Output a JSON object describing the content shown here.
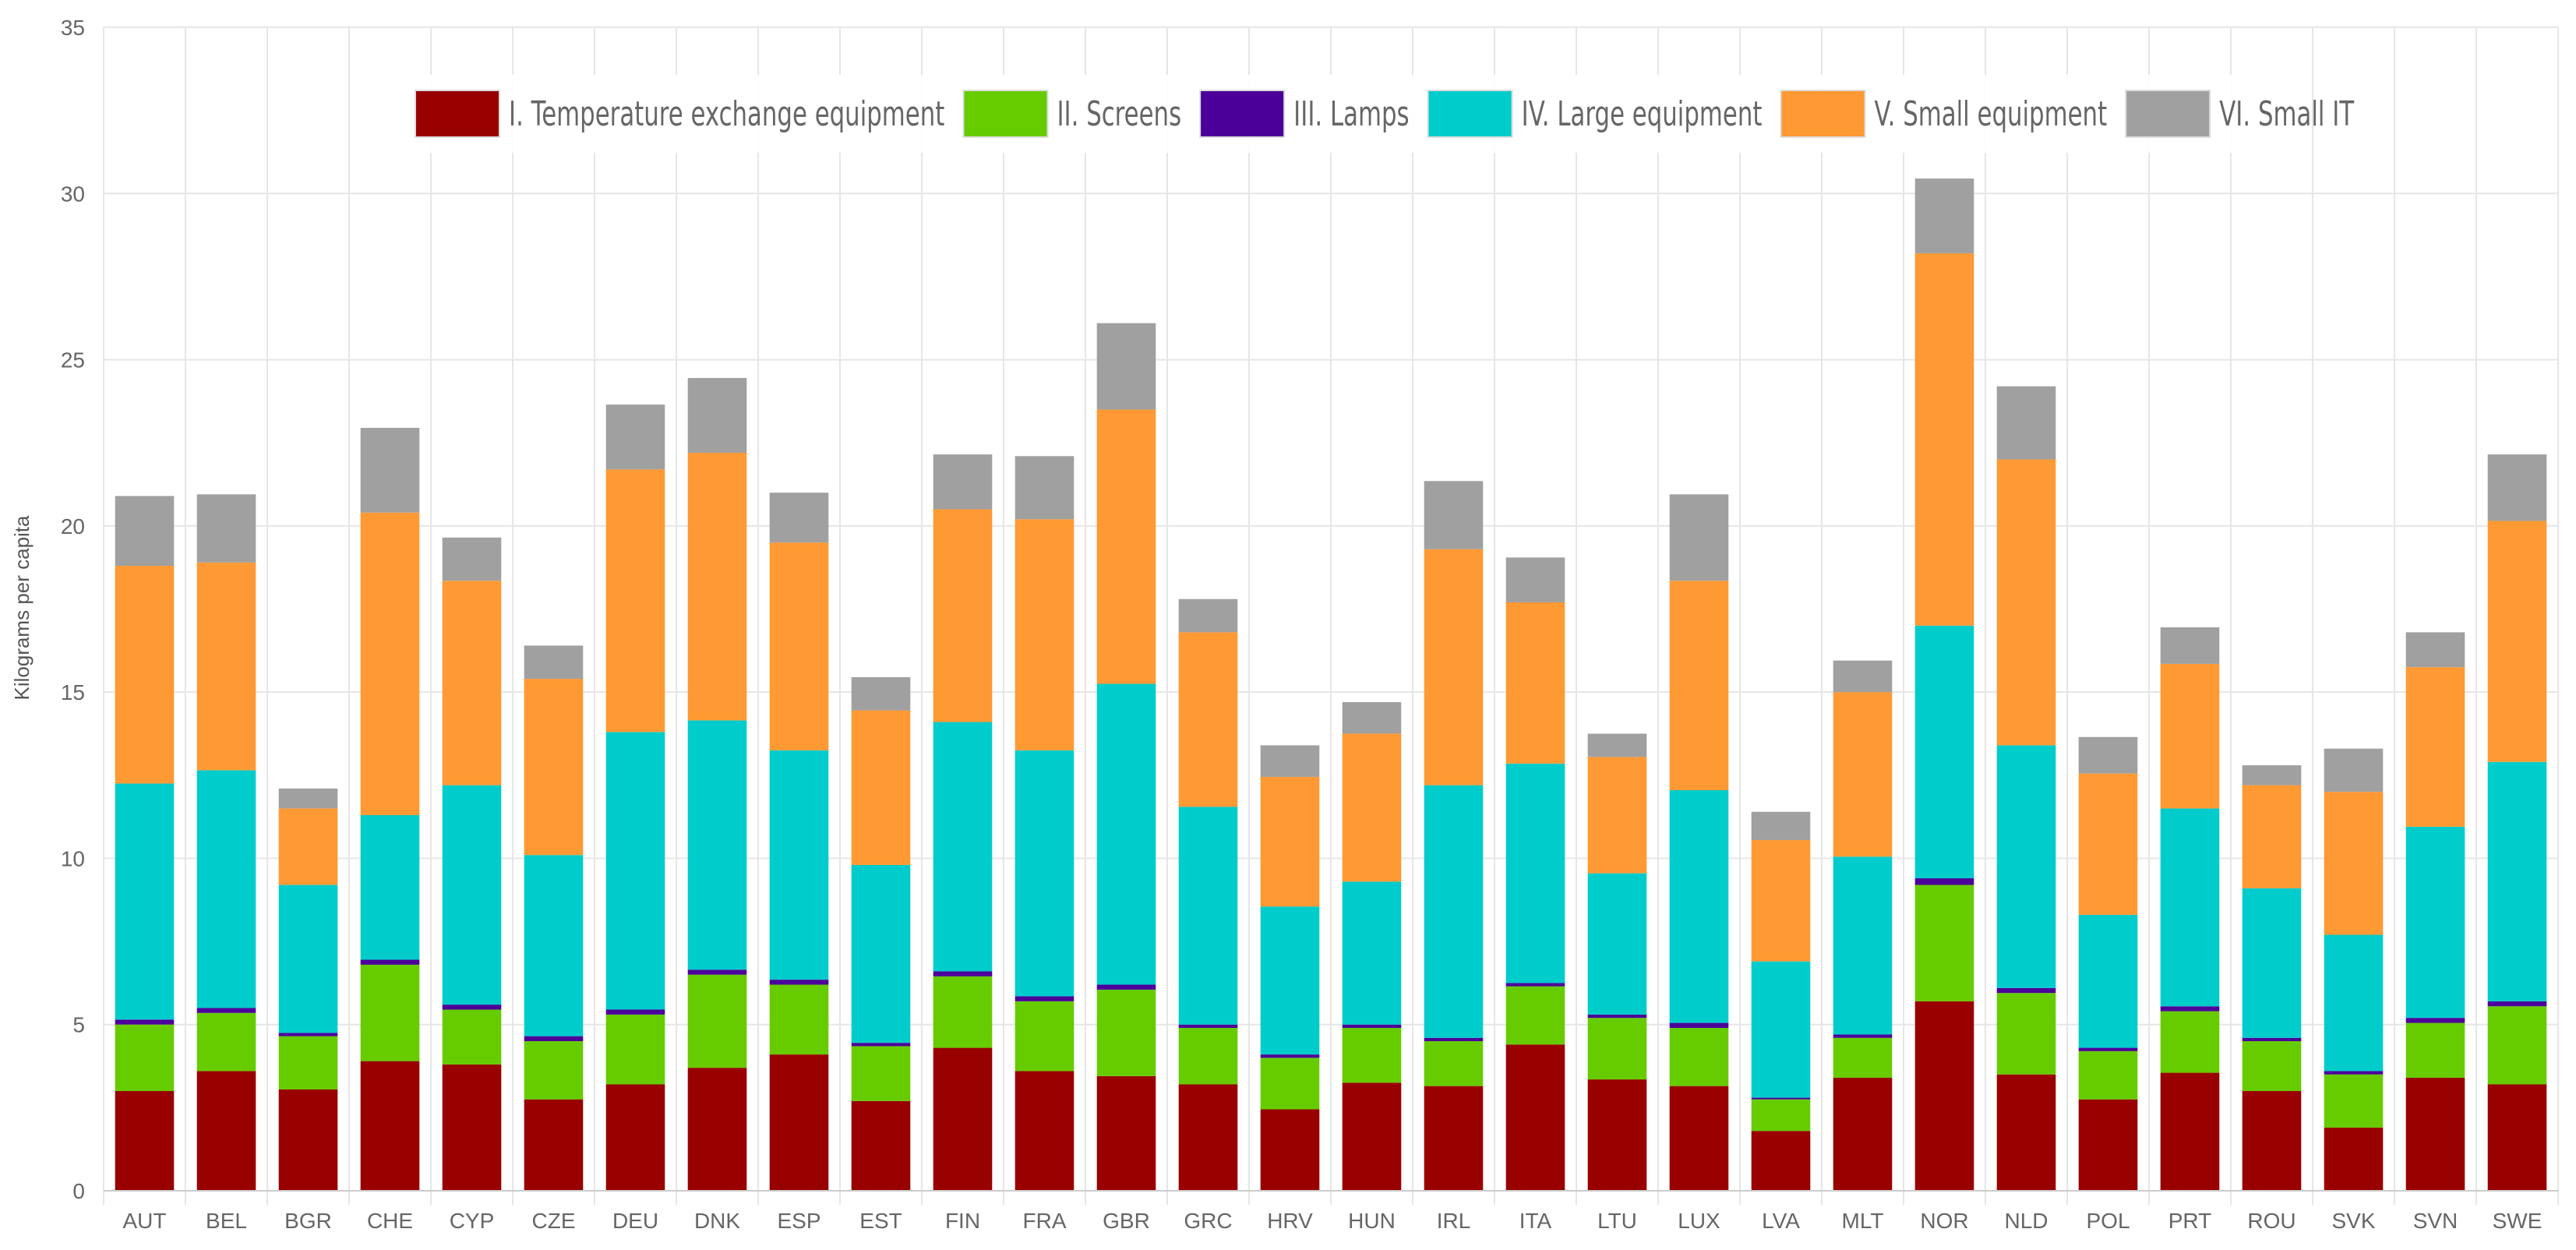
{
  "chart_data": {
    "type": "bar",
    "stacked": true,
    "title": "",
    "xlabel": "",
    "ylabel": "Kilograms per capita",
    "ylim": [
      0,
      35
    ],
    "y_ticks": [
      "0",
      "5",
      "10",
      "15",
      "20",
      "25",
      "30",
      "35"
    ],
    "grid": true,
    "legend_position": "top",
    "categories": [
      "AUT",
      "BEL",
      "BGR",
      "CHE",
      "CYP",
      "CZE",
      "DEU",
      "DNK",
      "ESP",
      "EST",
      "FIN",
      "FRA",
      "GBR",
      "GRC",
      "HRV",
      "HUN",
      "IRL",
      "ITA",
      "LTU",
      "LUX",
      "LVA",
      "MLT",
      "NOR",
      "NLD",
      "POL",
      "PRT",
      "ROU",
      "SVK",
      "SVN",
      "SWE"
    ],
    "series": [
      {
        "name": "I. Temperature exchange equipment",
        "color": "#990000",
        "values": [
          3.0,
          3.6,
          3.05,
          3.9,
          3.8,
          2.75,
          3.2,
          3.7,
          4.1,
          2.7,
          4.3,
          3.6,
          3.45,
          3.2,
          2.45,
          3.25,
          3.15,
          4.4,
          3.35,
          3.15,
          1.8,
          3.4,
          5.7,
          3.5,
          2.75,
          3.55,
          3.0,
          1.9,
          3.4,
          3.2
        ]
      },
      {
        "name": "II. Screens",
        "color": "#66cc00",
        "values": [
          2.0,
          1.75,
          1.6,
          2.9,
          1.65,
          1.75,
          2.1,
          2.8,
          2.1,
          1.65,
          2.15,
          2.1,
          2.6,
          1.7,
          1.55,
          1.65,
          1.35,
          1.75,
          1.85,
          1.75,
          0.95,
          1.2,
          3.5,
          2.45,
          1.45,
          1.85,
          1.5,
          1.6,
          1.65,
          2.35
        ]
      },
      {
        "name": "III. Lamps",
        "color": "#4b0099",
        "values": [
          0.15,
          0.15,
          0.1,
          0.15,
          0.15,
          0.15,
          0.15,
          0.15,
          0.15,
          0.1,
          0.15,
          0.15,
          0.15,
          0.1,
          0.1,
          0.1,
          0.1,
          0.1,
          0.1,
          0.15,
          0.05,
          0.1,
          0.2,
          0.15,
          0.1,
          0.15,
          0.1,
          0.1,
          0.15,
          0.15
        ]
      },
      {
        "name": "IV. Large equipment",
        "color": "#00cccc",
        "values": [
          7.1,
          7.15,
          4.45,
          4.35,
          6.6,
          5.45,
          8.35,
          7.5,
          6.9,
          5.35,
          7.5,
          7.4,
          9.05,
          6.55,
          4.45,
          4.3,
          7.6,
          6.6,
          4.25,
          7.0,
          4.1,
          5.35,
          7.6,
          7.3,
          4.0,
          5.95,
          4.5,
          4.1,
          5.75,
          7.2
        ]
      },
      {
        "name": "V. Small equipment",
        "color": "#ff9933",
        "values": [
          6.55,
          6.25,
          2.3,
          9.1,
          6.15,
          5.3,
          7.9,
          8.05,
          6.25,
          4.65,
          6.4,
          6.95,
          8.25,
          5.25,
          3.9,
          4.45,
          7.1,
          4.85,
          3.5,
          6.3,
          3.65,
          4.95,
          11.2,
          8.6,
          4.25,
          4.35,
          3.1,
          4.3,
          4.8,
          7.25
        ]
      },
      {
        "name": "VI. Small IT",
        "color": "#a0a0a0",
        "values": [
          2.1,
          2.05,
          0.6,
          2.55,
          1.3,
          1.0,
          1.95,
          2.25,
          1.5,
          1.0,
          1.65,
          1.9,
          2.6,
          1.0,
          0.95,
          0.95,
          2.05,
          1.35,
          0.7,
          2.6,
          0.85,
          0.95,
          2.25,
          2.2,
          1.1,
          1.1,
          0.6,
          1.3,
          1.05,
          2.0
        ]
      }
    ]
  }
}
